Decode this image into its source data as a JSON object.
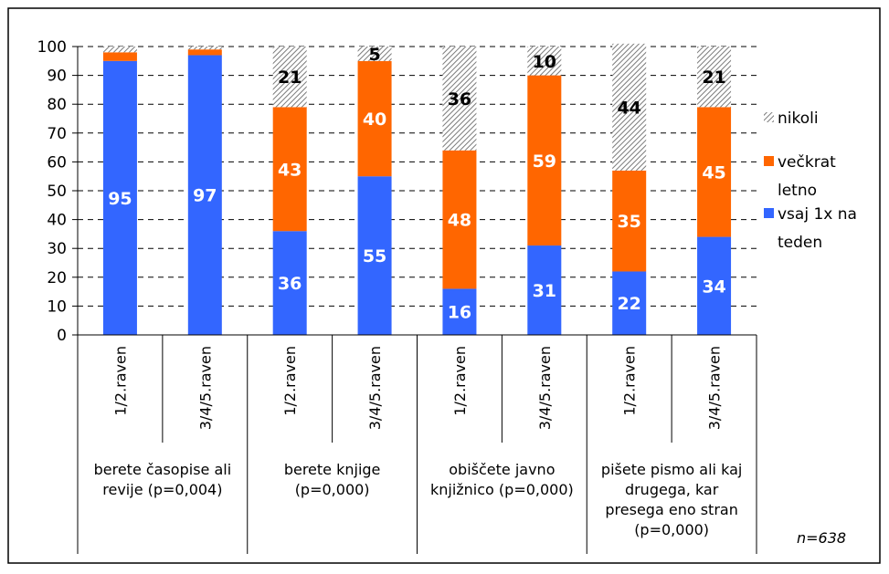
{
  "chart_data": {
    "type": "bar",
    "stacked": true,
    "ylim": [
      0,
      100
    ],
    "yticks": [
      0,
      10,
      20,
      30,
      40,
      50,
      60,
      70,
      80,
      90,
      100
    ],
    "grid": "horizontal dashed",
    "legend_position": "right",
    "categories": [
      "1/2.raven",
      "3/4/5.raven",
      "1/2.raven",
      "3/4/5.raven",
      "1/2.raven",
      "3/4/5.raven",
      "1/2.raven",
      "3/4/5.raven"
    ],
    "groups": [
      {
        "lines": [
          "berete časopise ali",
          "revije (p=0,004)"
        ]
      },
      {
        "lines": [
          "berete knjige",
          "(p=0,000)"
        ]
      },
      {
        "lines": [
          "obiščete javno",
          "knjižnico (p=0,000)"
        ]
      },
      {
        "lines": [
          "pišete pismo ali kaj",
          "drugega, kar",
          "presega eno stran",
          "(p=0,000)"
        ]
      }
    ],
    "series": [
      {
        "name": "vsaj 1x na teden",
        "legend_lines": [
          "vsaj 1x na",
          "teden"
        ],
        "color": "#3366FF",
        "label_color": "#ffffff",
        "values": [
          95,
          97,
          36,
          55,
          16,
          31,
          22,
          34
        ],
        "labels": [
          "95",
          "97",
          "36",
          "55",
          "16",
          "31",
          "22",
          "34"
        ]
      },
      {
        "name": "večkrat letno",
        "legend_lines": [
          "večkrat",
          "letno"
        ],
        "color": "#FF6600",
        "label_color": "#ffffff",
        "values": [
          3,
          2,
          43,
          40,
          48,
          59,
          35,
          45
        ],
        "labels": [
          "",
          "",
          "43",
          "40",
          "48",
          "59",
          "35",
          "45"
        ]
      },
      {
        "name": "nikoli",
        "legend_lines": [
          "nikoli"
        ],
        "color": "#d0d0d0",
        "pattern": "hatched",
        "label_color": "#000000",
        "values": [
          2,
          1,
          21,
          5,
          36,
          10,
          44,
          21
        ],
        "labels": [
          "",
          "",
          "21",
          "5",
          "36",
          "10",
          "44",
          "21"
        ]
      }
    ],
    "annotation": "n=638"
  }
}
